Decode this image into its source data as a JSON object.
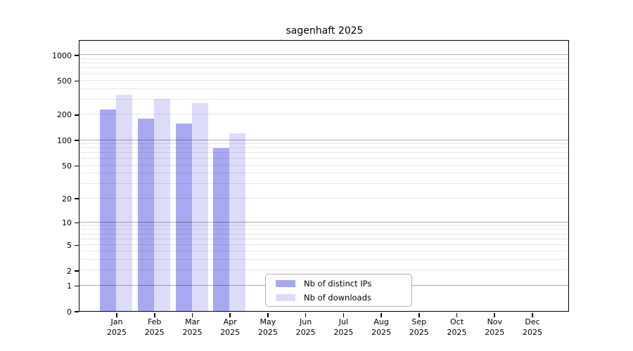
{
  "title": "sagenhaft 2025",
  "chart_data": {
    "type": "bar",
    "title": "sagenhaft 2025",
    "categories": [
      "Jan",
      "Feb",
      "Mar",
      "Apr",
      "May",
      "Jun",
      "Jul",
      "Aug",
      "Sep",
      "Oct",
      "Nov",
      "Dec"
    ],
    "x_year": "2025",
    "series": [
      {
        "key": "distinct-ips",
        "name": "Nb of distinct IPs",
        "color": "#a8a8f2",
        "values": [
          228,
          180,
          158,
          80,
          null,
          null,
          null,
          null,
          null,
          null,
          null,
          null
        ]
      },
      {
        "key": "downloads",
        "name": "Nb of downloads",
        "color": "#dcdcfa",
        "values": [
          345,
          307,
          274,
          120,
          null,
          null,
          null,
          null,
          null,
          null,
          null,
          null
        ]
      }
    ],
    "y_ticks": [
      0,
      1,
      2,
      5,
      10,
      20,
      50,
      100,
      200,
      500,
      1000
    ],
    "y_scale": "log10(value+1)",
    "y_top_value": 1475,
    "grid": "horizontal major+minor, drawn over bars",
    "legend_position": "bottom-center-left inside plot"
  },
  "colors": {
    "bar_distinct_ips": "#a8a8f2",
    "bar_downloads": "#dcdcfa",
    "grid_major": "#a9a9a9",
    "grid_minor": "#e6e6e6",
    "axis": "#000000",
    "background": "#ffffff"
  }
}
